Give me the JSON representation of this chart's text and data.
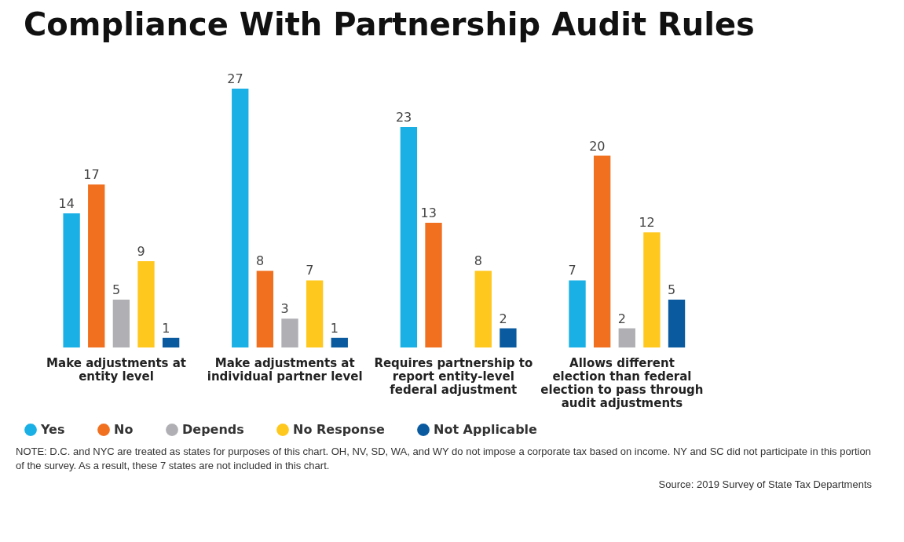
{
  "chart_data": {
    "type": "bar",
    "title": "Compliance With Partnership Audit Rules",
    "categories": [
      "Make adjustments at entity level",
      "Make adjustments at individual partner level",
      "Requires partnership to report entity-level federal adjustment",
      "Allows different election than federal election to pass through audit adjustments"
    ],
    "series": [
      {
        "name": "Yes",
        "color": "#1ab0e6",
        "values": [
          14,
          27,
          23,
          7
        ]
      },
      {
        "name": "No",
        "color": "#f07020",
        "values": [
          17,
          8,
          13,
          20
        ]
      },
      {
        "name": "Depends",
        "color": "#b0b0b4",
        "values": [
          5,
          3,
          null,
          2
        ]
      },
      {
        "name": "No Response",
        "color": "#ffc81e",
        "values": [
          9,
          7,
          8,
          12
        ]
      },
      {
        "name": "Not Applicable",
        "color": "#0a5aa0",
        "values": [
          1,
          1,
          2,
          5
        ]
      }
    ],
    "data_labels": true,
    "legend": "bottom",
    "grid": false,
    "annotations": [
      "NOTE: D.C. and NYC are treated as states for purposes of this chart. OH, NV, SD, WA, and WY do not impose a corporate tax based on income. NY and SC did not participate in this portion of the survey. As a result, these 7 states are not included in this chart.",
      "Source: 2019 Survey of State Tax Departments"
    ]
  }
}
